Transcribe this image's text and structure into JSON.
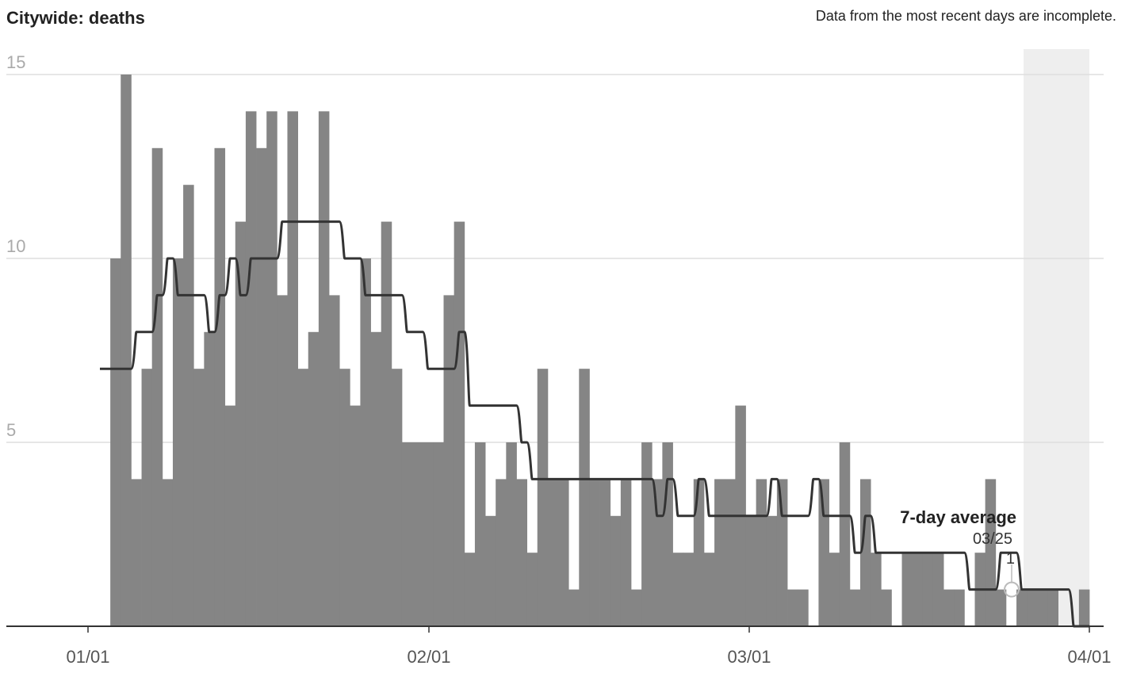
{
  "title": "Citywide: deaths",
  "note": "Data from the most recent days are incomplete.",
  "chart_data": {
    "type": "bar",
    "x_start": "01/01",
    "x_end": "04/01",
    "ylim": [
      0,
      15
    ],
    "y_ticks": [
      5,
      10,
      15
    ],
    "x_ticks": [
      "01/01",
      "02/01",
      "03/01",
      "04/01"
    ],
    "grid": true,
    "colors": {
      "bars": "#858585",
      "line": "#333333",
      "incomplete_band": "#eeeeee",
      "axis": "#333333",
      "grid": "#dddddd"
    },
    "series": [
      {
        "name": "deaths",
        "type": "bar",
        "values": [
          0,
          10,
          15,
          4,
          7,
          13,
          4,
          10,
          12,
          7,
          8,
          13,
          6,
          11,
          14,
          13,
          14,
          9,
          14,
          7,
          8,
          14,
          9,
          7,
          6,
          10,
          8,
          11,
          7,
          5,
          5,
          5,
          5,
          9,
          11,
          2,
          5,
          3,
          4,
          5,
          4,
          2,
          7,
          4,
          4,
          1,
          7,
          4,
          4,
          3,
          4,
          1,
          5,
          4,
          5,
          2,
          2,
          4,
          2,
          4,
          4,
          6,
          3,
          4,
          3,
          4,
          1,
          1,
          0,
          4,
          2,
          5,
          1,
          4,
          2,
          1,
          0,
          2,
          2,
          2,
          2,
          1,
          1,
          0,
          2,
          4,
          1,
          0,
          1,
          1,
          1,
          1,
          0,
          0,
          1
        ]
      },
      {
        "name": "7-day average",
        "type": "line",
        "values": [
          7,
          7,
          7,
          8,
          8,
          9,
          10,
          9,
          9,
          9,
          8,
          9,
          10,
          9,
          10,
          10,
          10,
          11,
          11,
          11,
          11,
          11,
          11,
          10,
          10,
          9,
          9,
          9,
          9,
          8,
          8,
          7,
          7,
          7,
          8,
          6,
          6,
          6,
          6,
          6,
          5,
          4,
          4,
          4,
          4,
          4,
          4,
          4,
          4,
          4,
          4,
          4,
          4,
          3,
          4,
          3,
          3,
          4,
          3,
          3,
          3,
          3,
          3,
          3,
          4,
          3,
          3,
          3,
          4,
          3,
          3,
          3,
          2,
          3,
          2,
          2,
          2,
          2,
          2,
          2,
          2,
          2,
          2,
          1,
          1,
          1,
          2,
          2,
          1,
          1,
          1,
          1,
          1,
          0,
          0
        ]
      }
    ],
    "incomplete_from": "03/26",
    "annotation": {
      "label": "7-day average",
      "date": "03/25",
      "value": "1"
    }
  }
}
